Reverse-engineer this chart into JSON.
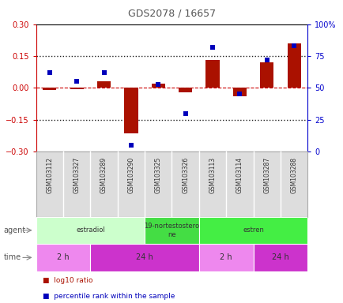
{
  "title": "GDS2078 / 16657",
  "samples": [
    "GSM103112",
    "GSM103327",
    "GSM103289",
    "GSM103290",
    "GSM103325",
    "GSM103326",
    "GSM103113",
    "GSM103114",
    "GSM103287",
    "GSM103288"
  ],
  "log10_ratio": [
    -0.01,
    -0.005,
    0.03,
    -0.215,
    0.02,
    -0.02,
    0.13,
    -0.04,
    0.12,
    0.21
  ],
  "percentile_rank": [
    62,
    55,
    62,
    5,
    53,
    30,
    82,
    45,
    72,
    83
  ],
  "ylim_left": [
    -0.3,
    0.3
  ],
  "ylim_right": [
    0,
    100
  ],
  "yticks_left": [
    -0.3,
    -0.15,
    0,
    0.15,
    0.3
  ],
  "yticks_right": [
    0,
    25,
    50,
    75,
    100
  ],
  "ytick_labels_right": [
    "0",
    "25",
    "50",
    "75",
    "100%"
  ],
  "bar_color": "#aa1100",
  "dot_color": "#0000bb",
  "background_color": "#ffffff",
  "agent_groups": [
    {
      "label": "estradiol",
      "start": 0,
      "end": 4,
      "color": "#ccffcc"
    },
    {
      "label": "19-nortestostero\nne",
      "start": 4,
      "end": 6,
      "color": "#44dd44"
    },
    {
      "label": "estren",
      "start": 6,
      "end": 10,
      "color": "#44ee44"
    }
  ],
  "time_groups": [
    {
      "label": "2 h",
      "start": 0,
      "end": 2,
      "color": "#ee88ee"
    },
    {
      "label": "24 h",
      "start": 2,
      "end": 6,
      "color": "#cc33cc"
    },
    {
      "label": "2 h",
      "start": 6,
      "end": 8,
      "color": "#ee88ee"
    },
    {
      "label": "24 h",
      "start": 8,
      "end": 10,
      "color": "#cc33cc"
    }
  ],
  "zero_line_color": "#cc0000",
  "dotted_line_color": "#222222",
  "label_agent": "agent",
  "label_time": "time",
  "legend_items": [
    {
      "label": "log10 ratio",
      "color": "#aa1100"
    },
    {
      "label": "percentile rank within the sample",
      "color": "#0000bb"
    }
  ]
}
